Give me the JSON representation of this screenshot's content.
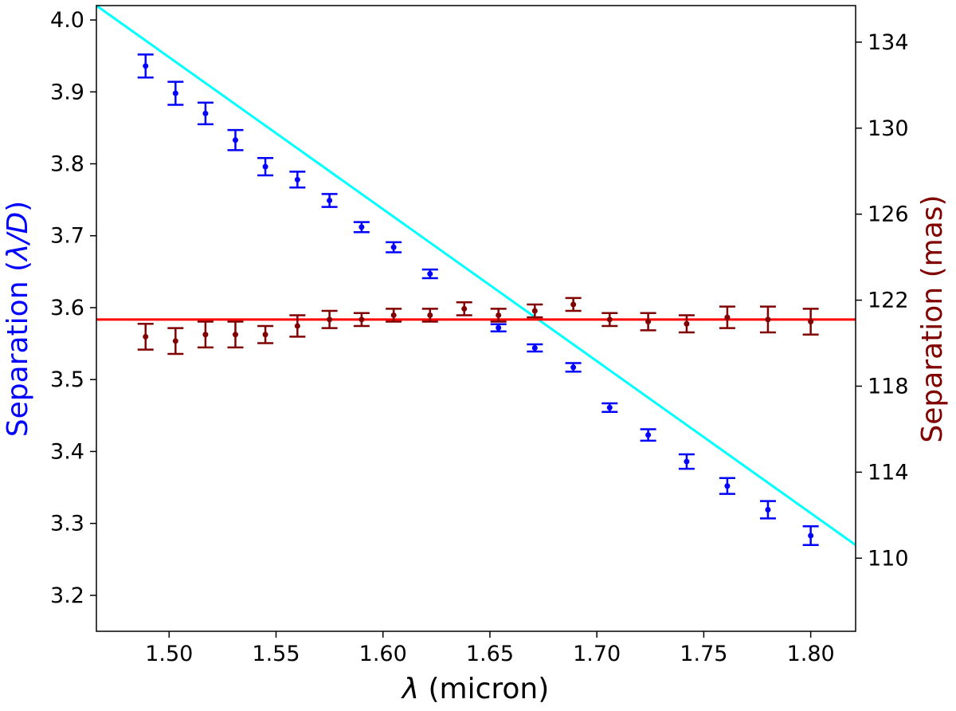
{
  "chart_data": {
    "type": "scatter",
    "xlabel_symbol": "λ",
    "xlabel_text": " (micron)",
    "ylabel_left_text": "Separation (",
    "ylabel_left_symbol": "λ/D",
    "ylabel_left_close": ")",
    "ylabel_right": "Separation (mas)",
    "xlim": [
      1.466,
      1.821
    ],
    "ylim_left": [
      3.15,
      4.02
    ],
    "ylim_right": [
      106.6,
      135.7
    ],
    "x_ticks": [
      "1.50",
      "1.55",
      "1.60",
      "1.65",
      "1.70",
      "1.75",
      "1.80"
    ],
    "y_left_ticks": [
      "3.2",
      "3.3",
      "3.4",
      "3.5",
      "3.6",
      "3.7",
      "3.8",
      "3.9",
      "4.0"
    ],
    "y_right_ticks": [
      "110",
      "114",
      "118",
      "122",
      "126",
      "130",
      "134"
    ],
    "colors": {
      "left_series": "#0000ff",
      "left_fit": "#00ffff",
      "right_series": "#800000",
      "right_fit": "#ff0000",
      "ylabel_left": "#0000ff",
      "ylabel_right": "#800000"
    },
    "series": [
      {
        "axis": "left",
        "x": [
          1.489,
          1.503,
          1.517,
          1.531,
          1.545,
          1.56,
          1.575,
          1.59,
          1.605,
          1.622,
          1.654,
          1.671,
          1.689,
          1.706,
          1.724,
          1.742,
          1.761,
          1.78,
          1.8
        ],
        "y": [
          3.936,
          3.898,
          3.87,
          3.833,
          3.796,
          3.778,
          3.749,
          3.712,
          3.684,
          3.647,
          3.572,
          3.544,
          3.517,
          3.461,
          3.423,
          3.386,
          3.352,
          3.319,
          3.283
        ],
        "err": [
          0.016,
          0.016,
          0.015,
          0.014,
          0.012,
          0.011,
          0.009,
          0.007,
          0.007,
          0.006,
          0.005,
          0.005,
          0.006,
          0.006,
          0.008,
          0.01,
          0.011,
          0.012,
          0.013
        ]
      },
      {
        "axis": "right",
        "x": [
          1.489,
          1.503,
          1.517,
          1.531,
          1.545,
          1.56,
          1.575,
          1.59,
          1.605,
          1.622,
          1.638,
          1.654,
          1.671,
          1.689,
          1.706,
          1.724,
          1.742,
          1.761,
          1.78,
          1.8
        ],
        "y": [
          120.3,
          120.1,
          120.4,
          120.4,
          120.4,
          120.8,
          121.1,
          121.1,
          121.3,
          121.3,
          121.6,
          121.3,
          121.5,
          121.8,
          121.1,
          121.0,
          120.9,
          121.2,
          121.1,
          121.0
        ],
        "err": [
          0.6,
          0.6,
          0.6,
          0.6,
          0.4,
          0.5,
          0.4,
          0.3,
          0.3,
          0.3,
          0.3,
          0.3,
          0.3,
          0.3,
          0.3,
          0.4,
          0.4,
          0.5,
          0.6,
          0.6
        ]
      }
    ],
    "fits": [
      {
        "axis": "left",
        "x": [
          1.466,
          1.821
        ],
        "y": [
          4.02,
          3.27
        ]
      },
      {
        "axis": "right",
        "x": [
          1.466,
          1.821
        ],
        "y": [
          121.1,
          121.1
        ]
      }
    ]
  }
}
